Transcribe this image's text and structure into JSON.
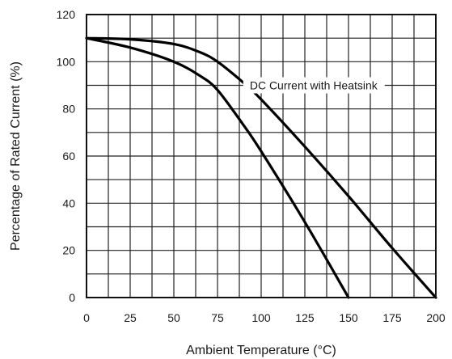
{
  "chart_data": {
    "type": "line",
    "title": "",
    "xlabel": "Ambient Temperature (°C)",
    "ylabel": "Percentage of Rated Current (%)",
    "xlim": [
      0,
      200
    ],
    "ylim": [
      0,
      120
    ],
    "x_ticks": [
      "0",
      "25",
      "50",
      "75",
      "100",
      "125",
      "150",
      "175",
      "200"
    ],
    "y_ticks": [
      "0",
      "20",
      "40",
      "60",
      "80",
      "100",
      "120"
    ],
    "grid": true,
    "series": [
      {
        "name": "DC Current with Heatsink",
        "x": [
          0,
          25,
          50,
          65,
          75,
          90,
          100,
          125,
          150,
          175,
          200
        ],
        "y": [
          110,
          109.5,
          107.5,
          104,
          100,
          91,
          84,
          64,
          43,
          21,
          0
        ]
      },
      {
        "x": [
          0,
          25,
          50,
          65,
          75,
          90,
          100,
          125,
          150
        ],
        "y": [
          110,
          106,
          100,
          94,
          88,
          73,
          62,
          32,
          0
        ]
      }
    ],
    "annotations": [
      {
        "text": "DC Current with Heatsink",
        "x": 130,
        "y": 90
      }
    ]
  }
}
